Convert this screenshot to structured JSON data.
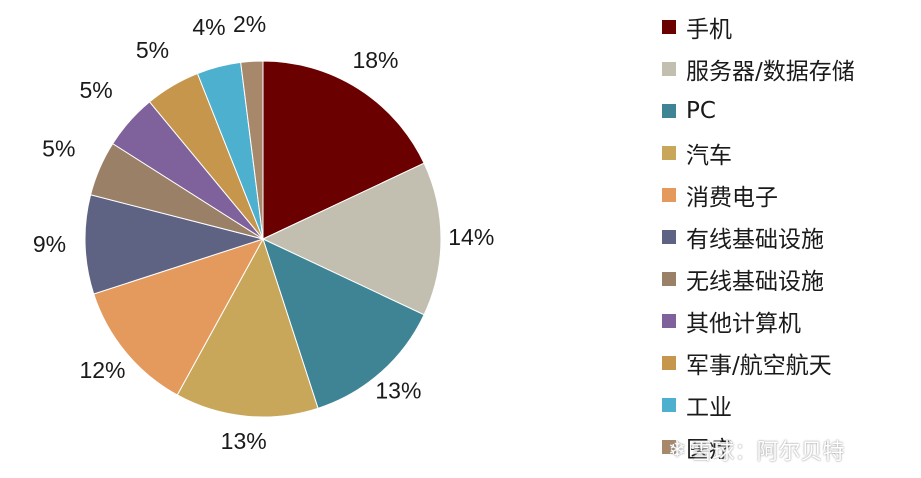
{
  "chart_data": {
    "type": "pie",
    "title": "",
    "legend_position": "right",
    "start_angle": "12 o'clock, clockwise",
    "slices": [
      {
        "label": "手机",
        "value": 18,
        "pct_label": "18%",
        "color": "#6b0000"
      },
      {
        "label": "服务器/数据存储",
        "value": 14,
        "pct_label": "14%",
        "color": "#c2bfb1"
      },
      {
        "label": "PC",
        "value": 13,
        "pct_label": "13%",
        "color": "#3f8494"
      },
      {
        "label": "汽车",
        "value": 13,
        "pct_label": "13%",
        "color": "#c8a75a"
      },
      {
        "label": "消费电子",
        "value": 12,
        "pct_label": "12%",
        "color": "#e49a5c"
      },
      {
        "label": "有线基础设施",
        "value": 9,
        "pct_label": "9%",
        "color": "#5e6383"
      },
      {
        "label": "无线基础设施",
        "value": 5,
        "pct_label": "5%",
        "color": "#9b8068"
      },
      {
        "label": "其他计算机",
        "value": 5,
        "pct_label": "5%",
        "color": "#7f619b"
      },
      {
        "label": "军事/航空航天",
        "value": 5,
        "pct_label": "5%",
        "color": "#c5964b"
      },
      {
        "label": "工业",
        "value": 4,
        "pct_label": "4%",
        "color": "#4db0cf"
      },
      {
        "label": "医疗",
        "value": 2,
        "pct_label": "2%",
        "color": "#a8886a"
      }
    ]
  },
  "watermark": {
    "text": "雪球：阿尔贝特",
    "icon": "snowball-logo-icon"
  }
}
